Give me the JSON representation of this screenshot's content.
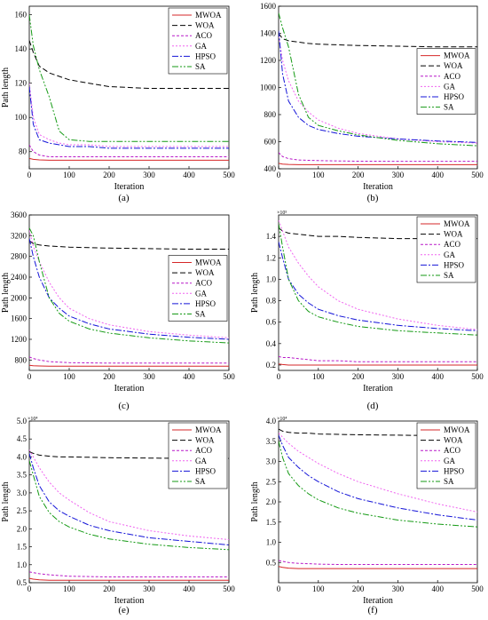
{
  "legend_labels": [
    "MWOA",
    "WOA",
    "ACO",
    "GA",
    "HPSO",
    "SA"
  ],
  "series_styles": [
    {
      "name": "MWOA",
      "color": "#d62728",
      "dash": ""
    },
    {
      "name": "WOA",
      "color": "#000000",
      "dash": "6,3"
    },
    {
      "name": "ACO",
      "color": "#b818c8",
      "dash": "3,2"
    },
    {
      "name": "GA",
      "color": "#f064f0",
      "dash": "2,2"
    },
    {
      "name": "HPSO",
      "color": "#1414d8",
      "dash": "7,2,2,2"
    },
    {
      "name": "SA",
      "color": "#159a15",
      "dash": "7,2,2,2,2,2"
    }
  ],
  "chart_data": [
    {
      "type": "line",
      "caption": "(a)",
      "xlabel": "Iteration",
      "ylabel": "Path length",
      "multiplier": "",
      "xlim": [
        0,
        500
      ],
      "ylim": [
        70,
        165
      ],
      "xticks": [
        0,
        100,
        200,
        300,
        400,
        500
      ],
      "yticks": [
        80,
        100,
        120,
        140,
        160
      ],
      "ytick_labels": [
        "80",
        "100",
        "120",
        "140",
        "160"
      ],
      "x": [
        0,
        10,
        25,
        50,
        75,
        100,
        150,
        200,
        300,
        400,
        500
      ],
      "series": [
        {
          "name": "MWOA",
          "values": [
            76,
            75.5,
            75.2,
            75,
            75,
            75,
            75,
            75,
            75,
            75,
            75
          ]
        },
        {
          "name": "WOA",
          "values": [
            145,
            138,
            130,
            126,
            124,
            122,
            120,
            118,
            117,
            117,
            117
          ]
        },
        {
          "name": "ACO",
          "values": [
            84,
            80,
            78,
            77,
            77,
            77,
            77,
            77,
            77,
            77,
            77
          ]
        },
        {
          "name": "GA",
          "values": [
            120,
            100,
            90,
            87,
            85,
            84,
            84,
            83,
            83,
            83,
            83
          ]
        },
        {
          "name": "HPSO",
          "values": [
            118,
            96,
            87,
            85,
            84,
            83,
            83,
            82,
            82,
            82,
            82
          ]
        },
        {
          "name": "SA",
          "values": [
            160,
            142,
            128,
            112,
            92,
            87,
            86,
            86,
            86,
            86,
            86
          ]
        }
      ]
    },
    {
      "type": "line",
      "caption": "(b)",
      "xlabel": "Iteration",
      "ylabel": "",
      "multiplier": "",
      "xlim": [
        0,
        500
      ],
      "ylim": [
        400,
        1600
      ],
      "xticks": [
        0,
        100,
        200,
        300,
        400,
        500
      ],
      "yticks": [
        400,
        600,
        800,
        1000,
        1200,
        1400,
        1600
      ],
      "ytick_labels": [
        "400",
        "600",
        "800",
        "1000",
        "1200",
        "1400",
        "1600"
      ],
      "x": [
        0,
        10,
        25,
        50,
        75,
        100,
        150,
        200,
        300,
        400,
        500
      ],
      "series": [
        {
          "name": "MWOA",
          "values": [
            440,
            435,
            432,
            430,
            430,
            430,
            430,
            430,
            430,
            430,
            430
          ]
        },
        {
          "name": "WOA",
          "values": [
            1400,
            1360,
            1345,
            1335,
            1325,
            1320,
            1315,
            1310,
            1305,
            1300,
            1300
          ]
        },
        {
          "name": "ACO",
          "values": [
            520,
            490,
            475,
            465,
            462,
            460,
            458,
            456,
            455,
            455,
            455
          ]
        },
        {
          "name": "GA",
          "values": [
            1380,
            1200,
            1050,
            900,
            820,
            760,
            700,
            660,
            620,
            600,
            590
          ]
        },
        {
          "name": "HPSO",
          "values": [
            1420,
            1100,
            900,
            780,
            720,
            690,
            660,
            640,
            620,
            605,
            595
          ]
        },
        {
          "name": "SA",
          "values": [
            1550,
            1440,
            1300,
            950,
            780,
            720,
            680,
            650,
            610,
            585,
            570
          ]
        }
      ]
    },
    {
      "type": "line",
      "caption": "(c)",
      "xlabel": "Iteration",
      "ylabel": "Path length",
      "multiplier": "",
      "xlim": [
        0,
        500
      ],
      "ylim": [
        600,
        3600
      ],
      "xticks": [
        0,
        100,
        200,
        300,
        400,
        500
      ],
      "yticks": [
        800,
        1200,
        1600,
        2000,
        2400,
        2800,
        3200,
        3600
      ],
      "ytick_labels": [
        "800",
        "1200",
        "1600",
        "2000",
        "2400",
        "2800",
        "3200",
        "3600"
      ],
      "x": [
        0,
        10,
        25,
        50,
        75,
        100,
        150,
        200,
        300,
        400,
        500
      ],
      "series": [
        {
          "name": "MWOA",
          "values": [
            700,
            690,
            685,
            680,
            680,
            680,
            680,
            680,
            680,
            680,
            680
          ]
        },
        {
          "name": "WOA",
          "values": [
            3100,
            3050,
            3020,
            3000,
            2990,
            2980,
            2970,
            2960,
            2950,
            2940,
            2940
          ]
        },
        {
          "name": "ACO",
          "values": [
            860,
            830,
            800,
            770,
            760,
            750,
            745,
            740,
            740,
            740,
            740
          ]
        },
        {
          "name": "GA",
          "values": [
            3300,
            3000,
            2700,
            2300,
            2000,
            1800,
            1600,
            1480,
            1350,
            1280,
            1230
          ]
        },
        {
          "name": "HPSO",
          "values": [
            3150,
            2800,
            2400,
            2000,
            1800,
            1650,
            1500,
            1400,
            1300,
            1240,
            1200
          ]
        },
        {
          "name": "SA",
          "values": [
            3350,
            3200,
            2700,
            2000,
            1700,
            1550,
            1400,
            1320,
            1230,
            1170,
            1130
          ]
        }
      ]
    },
    {
      "type": "line",
      "caption": "(d)",
      "xlabel": "Iteration",
      "ylabel": "Path length",
      "multiplier": "×10⁵",
      "xlim": [
        0,
        500
      ],
      "ylim": [
        0.15,
        1.6
      ],
      "xticks": [
        0,
        100,
        200,
        300,
        400,
        500
      ],
      "yticks": [
        0.2,
        0.4,
        0.6,
        0.8,
        1.0,
        1.2,
        1.4
      ],
      "ytick_labels": [
        "0.2",
        "0.4",
        "0.6",
        "0.8",
        "1.0",
        "1.2",
        "1.4"
      ],
      "x": [
        0,
        10,
        25,
        50,
        75,
        100,
        150,
        200,
        300,
        400,
        500
      ],
      "series": [
        {
          "name": "MWOA",
          "values": [
            0.21,
            0.205,
            0.2,
            0.2,
            0.2,
            0.2,
            0.2,
            0.2,
            0.2,
            0.2,
            0.2
          ]
        },
        {
          "name": "WOA",
          "values": [
            1.48,
            1.45,
            1.43,
            1.42,
            1.41,
            1.4,
            1.4,
            1.39,
            1.38,
            1.38,
            1.38
          ]
        },
        {
          "name": "ACO",
          "values": [
            0.28,
            0.27,
            0.27,
            0.26,
            0.25,
            0.24,
            0.24,
            0.23,
            0.23,
            0.23,
            0.23
          ]
        },
        {
          "name": "GA",
          "values": [
            1.55,
            1.45,
            1.3,
            1.15,
            1.03,
            0.93,
            0.8,
            0.72,
            0.63,
            0.57,
            0.53
          ]
        },
        {
          "name": "HPSO",
          "values": [
            1.35,
            1.2,
            1.0,
            0.86,
            0.78,
            0.72,
            0.66,
            0.62,
            0.57,
            0.54,
            0.52
          ]
        },
        {
          "name": "SA",
          "values": [
            1.52,
            1.3,
            1.0,
            0.8,
            0.7,
            0.65,
            0.6,
            0.56,
            0.52,
            0.5,
            0.48
          ]
        }
      ]
    },
    {
      "type": "line",
      "caption": "(e)",
      "xlabel": "Iteration",
      "ylabel": "Path length",
      "multiplier": "×10⁴",
      "xlim": [
        0,
        500
      ],
      "ylim": [
        0.5,
        5.0
      ],
      "xticks": [
        0,
        100,
        200,
        300,
        400,
        500
      ],
      "yticks": [
        0.5,
        1.0,
        1.5,
        2.0,
        2.5,
        3.0,
        3.5,
        4.0,
        4.5,
        5.0
      ],
      "ytick_labels": [
        "0.5",
        "1.0",
        "1.5",
        "2.0",
        "2.5",
        "3.0",
        "3.5",
        "4.0",
        "4.5",
        "5.0"
      ],
      "x": [
        0,
        10,
        25,
        50,
        75,
        100,
        150,
        200,
        300,
        400,
        500
      ],
      "series": [
        {
          "name": "MWOA",
          "values": [
            0.62,
            0.6,
            0.58,
            0.57,
            0.57,
            0.57,
            0.57,
            0.57,
            0.57,
            0.57,
            0.57
          ]
        },
        {
          "name": "WOA",
          "values": [
            4.15,
            4.1,
            4.05,
            4.02,
            4.0,
            4.0,
            3.99,
            3.98,
            3.97,
            3.96,
            3.96
          ]
        },
        {
          "name": "ACO",
          "values": [
            0.8,
            0.78,
            0.75,
            0.72,
            0.7,
            0.68,
            0.67,
            0.66,
            0.66,
            0.66,
            0.66
          ]
        },
        {
          "name": "GA",
          "values": [
            4.2,
            4.0,
            3.7,
            3.3,
            3.0,
            2.8,
            2.45,
            2.2,
            1.95,
            1.8,
            1.7
          ]
        },
        {
          "name": "HPSO",
          "values": [
            4.1,
            3.7,
            3.2,
            2.75,
            2.5,
            2.35,
            2.1,
            1.95,
            1.75,
            1.65,
            1.55
          ]
        },
        {
          "name": "SA",
          "values": [
            3.9,
            3.5,
            2.9,
            2.45,
            2.2,
            2.05,
            1.85,
            1.72,
            1.57,
            1.48,
            1.42
          ]
        }
      ]
    },
    {
      "type": "line",
      "caption": "(f)",
      "xlabel": "Iteration",
      "ylabel": "Path length",
      "multiplier": "×10⁴",
      "xlim": [
        0,
        500
      ],
      "ylim": [
        0.0,
        4.0
      ],
      "xticks": [
        0,
        100,
        200,
        300,
        400,
        500
      ],
      "yticks": [
        0.5,
        1.0,
        1.5,
        2.0,
        2.5,
        3.0,
        3.5,
        4.0
      ],
      "ytick_labels": [
        "0.5",
        "1.0",
        "1.5",
        "2.0",
        "2.5",
        "3.0",
        "3.5",
        "4.0"
      ],
      "x": [
        0,
        10,
        25,
        50,
        75,
        100,
        150,
        200,
        300,
        400,
        500
      ],
      "series": [
        {
          "name": "MWOA",
          "values": [
            0.4,
            0.38,
            0.36,
            0.35,
            0.35,
            0.35,
            0.35,
            0.35,
            0.35,
            0.35,
            0.35
          ]
        },
        {
          "name": "WOA",
          "values": [
            3.8,
            3.75,
            3.72,
            3.7,
            3.7,
            3.68,
            3.67,
            3.66,
            3.65,
            3.64,
            3.64
          ]
        },
        {
          "name": "ACO",
          "values": [
            0.55,
            0.53,
            0.5,
            0.48,
            0.47,
            0.46,
            0.45,
            0.45,
            0.45,
            0.45,
            0.45
          ]
        },
        {
          "name": "GA",
          "values": [
            3.7,
            3.6,
            3.45,
            3.25,
            3.1,
            2.95,
            2.7,
            2.5,
            2.2,
            1.95,
            1.75
          ]
        },
        {
          "name": "HPSO",
          "values": [
            3.65,
            3.4,
            3.1,
            2.85,
            2.65,
            2.5,
            2.25,
            2.08,
            1.85,
            1.68,
            1.55
          ]
        },
        {
          "name": "SA",
          "values": [
            3.5,
            3.1,
            2.7,
            2.4,
            2.2,
            2.05,
            1.85,
            1.72,
            1.55,
            1.45,
            1.38
          ]
        }
      ]
    }
  ]
}
